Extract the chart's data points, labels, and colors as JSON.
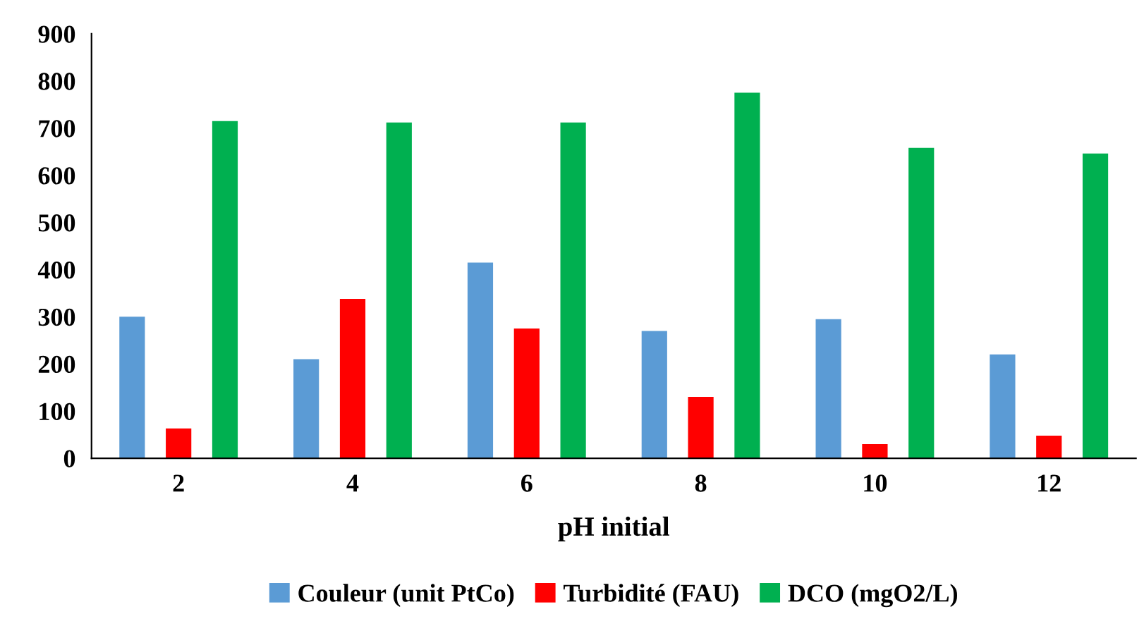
{
  "chart_data": {
    "type": "bar",
    "xlabel": "pH initial",
    "categories": [
      "2",
      "4",
      "6",
      "8",
      "10",
      "12"
    ],
    "series": [
      {
        "name": "Couleur (unit PtCo)",
        "color": "#5b9bd5",
        "values": [
          300,
          210,
          415,
          270,
          295,
          220
        ]
      },
      {
        "name": "Turbidité (FAU)",
        "color": "#ff0000",
        "values": [
          63,
          338,
          275,
          130,
          30,
          48
        ]
      },
      {
        "name": "DCO (mgO2/L)",
        "color": "#00b050",
        "values": [
          715,
          712,
          712,
          775,
          658,
          646
        ]
      }
    ],
    "ylim": [
      0,
      900
    ],
    "yticks": [
      0,
      100,
      200,
      300,
      400,
      500,
      600,
      700,
      800,
      900
    ],
    "grid": false,
    "legend": "bottom"
  }
}
